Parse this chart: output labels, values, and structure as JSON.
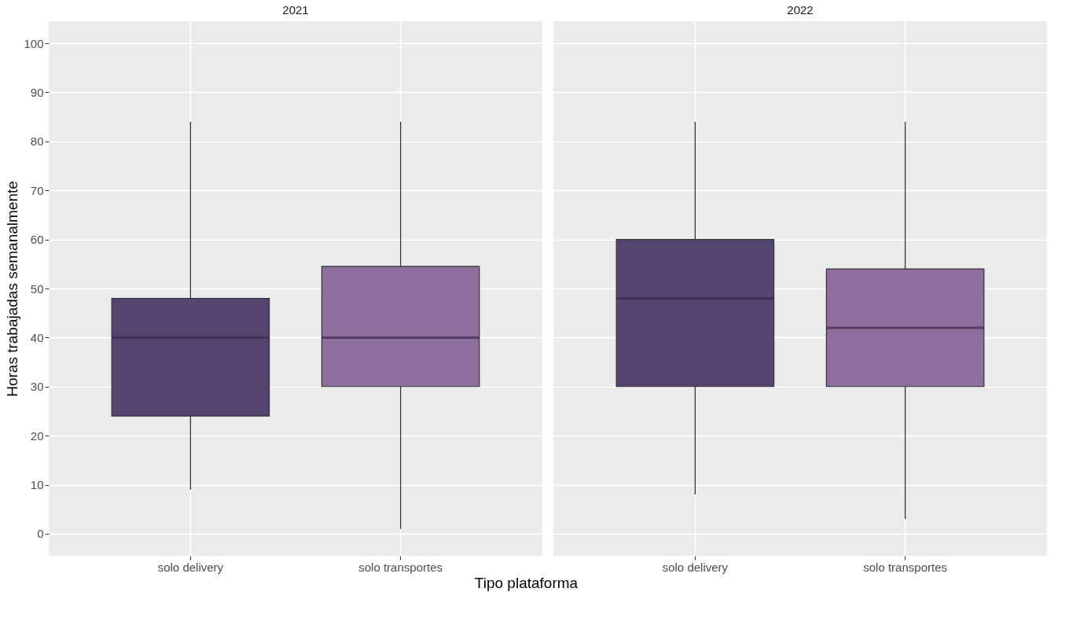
{
  "chart_data": [
    {
      "type": "box",
      "title": "2021",
      "xlabel": "Tipo plataforma",
      "ylabel": "Horas trabajadas semanalmente",
      "categories": [
        "solo delivery",
        "solo transportes"
      ],
      "colors": [
        "#544570",
        "#8f6e9e"
      ],
      "boxes": [
        {
          "low": 9,
          "q1": 24,
          "median": 40,
          "q3": 48,
          "high": 84
        },
        {
          "low": 1,
          "q1": 30,
          "median": 40,
          "q3": 54.5,
          "high": 84
        }
      ],
      "ylim": [
        -4.5,
        104.5
      ],
      "yticks": [
        0,
        10,
        20,
        30,
        40,
        50,
        60,
        70,
        80,
        90,
        100
      ],
      "grid": true
    },
    {
      "type": "box",
      "title": "2022",
      "categories": [
        "solo delivery",
        "solo transportes"
      ],
      "colors": [
        "#544570",
        "#8f6e9e"
      ],
      "boxes": [
        {
          "low": 8,
          "q1": 30,
          "median": 48,
          "q3": 60,
          "high": 84
        },
        {
          "low": 3,
          "q1": 30,
          "median": 42,
          "q3": 54,
          "high": 84
        }
      ],
      "ylim": [
        -4.5,
        104.5
      ],
      "yticks": [
        0,
        10,
        20,
        30,
        40,
        50,
        60,
        70,
        80,
        90,
        100
      ],
      "grid": true,
      "tick_labels": "x"
    }
  ]
}
